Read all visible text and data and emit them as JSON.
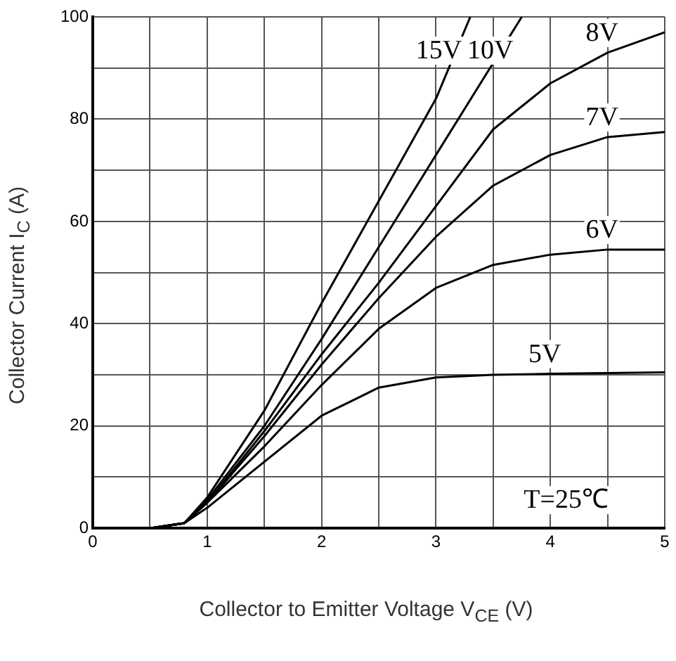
{
  "chart_data": {
    "type": "line",
    "xlabel": "Collector to Emitter Voltage  V$_{CE}$ (V)",
    "ylabel": "Collector Current  I$_{C}$ (A)",
    "xlim": [
      0,
      5
    ],
    "ylim": [
      0,
      100
    ],
    "xticks": [
      0,
      {
        "value": 0.5,
        "label": null
      },
      1,
      {
        "value": 1.5,
        "label": null
      },
      2,
      {
        "value": 2.5,
        "label": null
      },
      3,
      {
        "value": 3.5,
        "label": null
      },
      4,
      {
        "value": 4.5,
        "label": null
      },
      5
    ],
    "yticks": [
      0,
      {
        "value": 10,
        "label": null
      },
      20,
      {
        "value": 30,
        "label": null
      },
      40,
      {
        "value": 50,
        "label": null
      },
      60,
      {
        "value": 70,
        "label": null
      },
      80,
      {
        "value": 90,
        "label": null
      },
      100
    ],
    "grid": true,
    "legend": false,
    "marker": "none",
    "line_style": "solid",
    "series": [
      {
        "name": "15V",
        "color": "#000000",
        "x": [
          0,
          0.5,
          0.8,
          1,
          1.5,
          2,
          2.5,
          3,
          3.3
        ],
        "values": [
          0,
          0,
          1,
          6,
          23,
          44,
          64,
          84,
          100
        ]
      },
      {
        "name": "10V",
        "color": "#000000",
        "x": [
          0,
          0.5,
          0.8,
          1,
          1.5,
          2,
          2.5,
          3,
          3.5,
          3.75
        ],
        "values": [
          0,
          0,
          1,
          5.5,
          20,
          37,
          55,
          73,
          91,
          100
        ]
      },
      {
        "name": "8V",
        "color": "#000000",
        "x": [
          0,
          0.5,
          0.8,
          1,
          1.5,
          2,
          2.5,
          3,
          3.5,
          4,
          4.5,
          5
        ],
        "values": [
          0,
          0,
          1,
          5,
          19,
          34,
          48,
          63,
          78,
          87,
          93,
          97
        ]
      },
      {
        "name": "7V",
        "color": "#000000",
        "x": [
          0,
          0.5,
          0.8,
          1,
          1.5,
          2,
          2.5,
          3,
          3.5,
          4,
          4.5,
          5
        ],
        "values": [
          0,
          0,
          1,
          5,
          18,
          32,
          45,
          57,
          67,
          73,
          76.5,
          77.5
        ]
      },
      {
        "name": "6V",
        "color": "#000000",
        "x": [
          0,
          0.5,
          0.8,
          1,
          1.5,
          2,
          2.5,
          3,
          3.5,
          4,
          4.5,
          5
        ],
        "values": [
          0,
          0,
          1,
          5,
          16,
          28,
          39,
          47,
          51.5,
          53.5,
          54.5,
          54.5
        ]
      },
      {
        "name": "5V",
        "color": "#000000",
        "x": [
          0,
          0.5,
          0.8,
          1,
          1.5,
          2,
          2.5,
          3,
          3.5,
          4,
          5
        ],
        "values": [
          0,
          0,
          1,
          4,
          13,
          22,
          27.5,
          29.5,
          30,
          30.2,
          30.5
        ]
      }
    ],
    "annotations": [
      "T=25℃"
    ]
  }
}
